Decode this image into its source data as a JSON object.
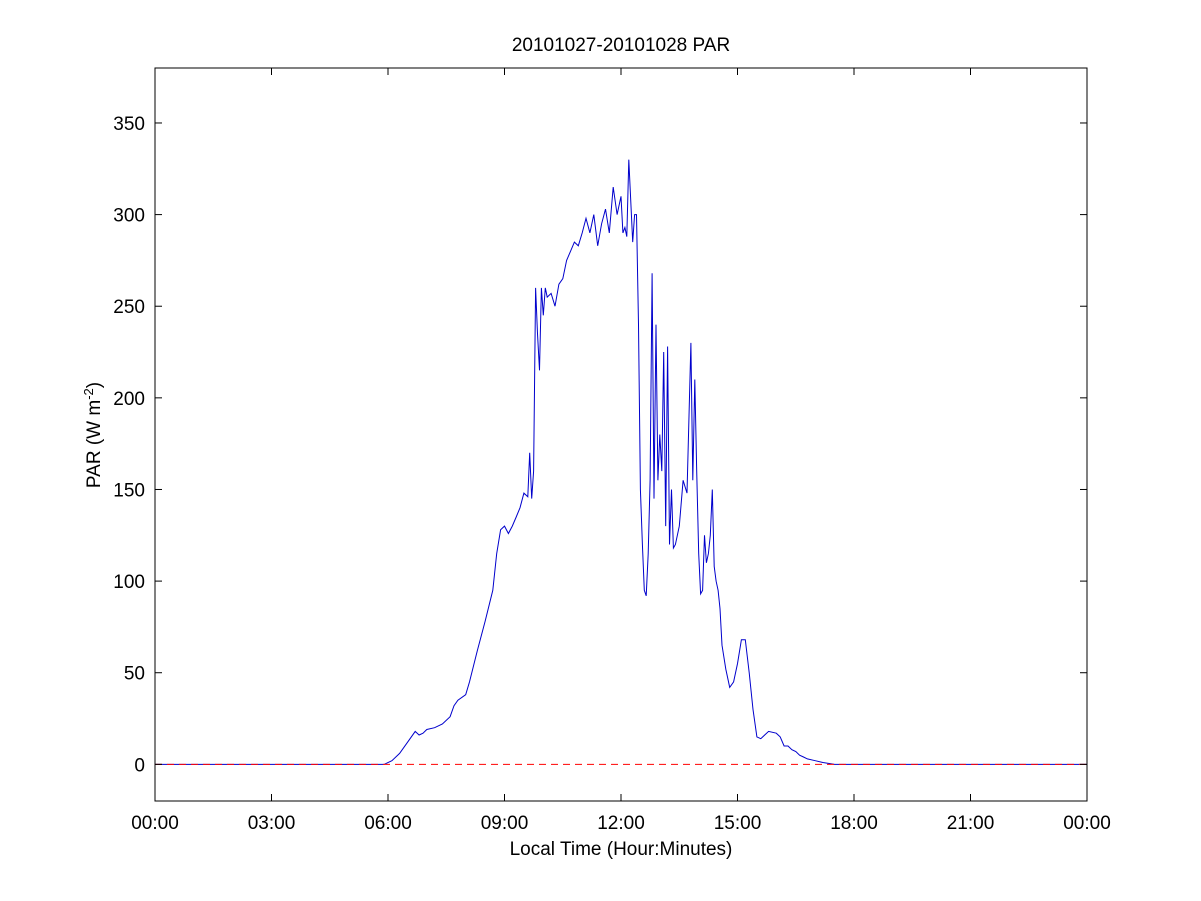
{
  "chart_data": {
    "type": "line",
    "title": "20101027-20101028 PAR",
    "xlabel": "Local Time (Hour:Minutes)",
    "ylabel_main": "PAR (W m",
    "ylabel_sup": "-2",
    "ylabel_close": ")",
    "x_units": "hours since 00:00 local time",
    "xlim": [
      0,
      24
    ],
    "ylim": [
      -20,
      380
    ],
    "x_ticks": [
      0,
      3,
      6,
      9,
      12,
      15,
      18,
      21,
      24
    ],
    "x_tick_labels": [
      "00:00",
      "03:00",
      "06:00",
      "09:00",
      "12:00",
      "15:00",
      "18:00",
      "21:00",
      "00:00"
    ],
    "y_ticks": [
      0,
      50,
      100,
      150,
      200,
      250,
      300,
      350
    ],
    "y_tick_labels": [
      "0",
      "50",
      "100",
      "150",
      "200",
      "250",
      "300",
      "350"
    ],
    "grid": false,
    "colors": {
      "par_line": "#0000cc",
      "zero_line": "#ff0000"
    },
    "series": [
      {
        "style": "solid",
        "x": [
          0,
          5.9,
          6.1,
          6.3,
          6.5,
          6.7,
          6.8,
          6.9,
          7.0,
          7.2,
          7.4,
          7.6,
          7.7,
          7.8,
          8.0,
          8.1,
          8.3,
          8.5,
          8.7,
          8.8,
          8.9,
          9.0,
          9.1,
          9.2,
          9.3,
          9.4,
          9.5,
          9.6,
          9.65,
          9.7,
          9.75,
          9.8,
          9.85,
          9.9,
          9.95,
          10.0,
          10.05,
          10.1,
          10.2,
          10.3,
          10.4,
          10.5,
          10.6,
          10.7,
          10.8,
          10.9,
          11.0,
          11.1,
          11.2,
          11.3,
          11.4,
          11.5,
          11.6,
          11.7,
          11.8,
          11.9,
          12.0,
          12.05,
          12.1,
          12.15,
          12.2,
          12.3,
          12.35,
          12.4,
          12.45,
          12.5,
          12.55,
          12.6,
          12.65,
          12.7,
          12.75,
          12.8,
          12.85,
          12.9,
          12.95,
          13.0,
          13.05,
          13.1,
          13.15,
          13.2,
          13.25,
          13.3,
          13.35,
          13.4,
          13.5,
          13.6,
          13.7,
          13.8,
          13.85,
          13.9,
          13.95,
          14.0,
          14.05,
          14.1,
          14.15,
          14.2,
          14.25,
          14.3,
          14.35,
          14.4,
          14.45,
          14.5,
          14.55,
          14.6,
          14.7,
          14.8,
          14.9,
          15.0,
          15.1,
          15.2,
          15.3,
          15.4,
          15.5,
          15.6,
          15.7,
          15.8,
          16.0,
          16.1,
          16.2,
          16.3,
          16.4,
          16.5,
          16.6,
          16.7,
          16.8,
          17.0,
          17.2,
          17.5,
          18.0,
          24.0
        ],
        "y": [
          0,
          0,
          2,
          6,
          12,
          18,
          16,
          17,
          19,
          20,
          22,
          26,
          32,
          35,
          38,
          45,
          62,
          78,
          95,
          115,
          128,
          130,
          126,
          130,
          135,
          140,
          148,
          146,
          170,
          145,
          160,
          260,
          235,
          215,
          260,
          245,
          260,
          255,
          257,
          250,
          262,
          265,
          275,
          280,
          285,
          283,
          290,
          298,
          290,
          300,
          283,
          295,
          303,
          290,
          315,
          300,
          310,
          290,
          293,
          288,
          330,
          285,
          300,
          300,
          240,
          150,
          120,
          95,
          92,
          115,
          155,
          268,
          145,
          240,
          155,
          180,
          160,
          225,
          130,
          228,
          120,
          150,
          118,
          120,
          130,
          155,
          148,
          230,
          155,
          210,
          160,
          115,
          93,
          95,
          125,
          110,
          115,
          125,
          150,
          108,
          100,
          95,
          85,
          65,
          52,
          42,
          45,
          55,
          68,
          68,
          50,
          30,
          15,
          14,
          16,
          18,
          17,
          15,
          10,
          10,
          8,
          7,
          5,
          4,
          3,
          2,
          1,
          0,
          0,
          0
        ]
      },
      {
        "style": "dashed",
        "x": [
          0,
          24
        ],
        "y": [
          0,
          0
        ]
      }
    ]
  }
}
